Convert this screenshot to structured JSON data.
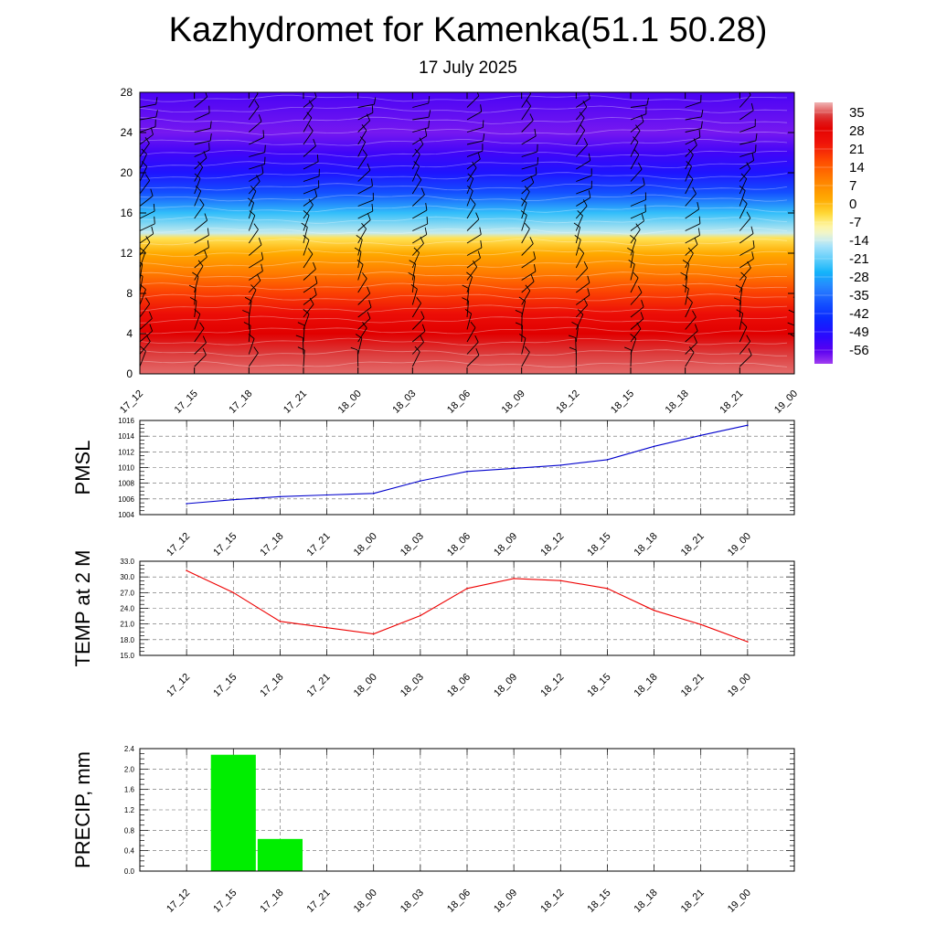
{
  "title": "Kazhydromet for Kamenka(51.1 50.28)",
  "subtitle": "17 July 2025",
  "time_labels": [
    "17_12",
    "17_15",
    "17_18",
    "17_21",
    "18_00",
    "18_03",
    "18_06",
    "18_09",
    "18_12",
    "18_15",
    "18_18",
    "18_21",
    "19_00"
  ],
  "chart_data": [
    {
      "type": "heatmap",
      "yticks": [
        0,
        4,
        8,
        12,
        16,
        20,
        24,
        28
      ],
      "ylim": [
        0,
        28
      ],
      "colorbar": {
        "labels": [
          "35",
          "28",
          "21",
          "14",
          "7",
          "0",
          "-7",
          "-14",
          "-21",
          "-28",
          "-35",
          "-42",
          "-49",
          "-56"
        ],
        "range": [
          -63,
          37
        ]
      },
      "rows": [
        {
          "level": 0,
          "value": 34
        },
        {
          "level": 2,
          "value": 32
        },
        {
          "level": 4,
          "value": 28
        },
        {
          "level": 6,
          "value": 23
        },
        {
          "level": 8,
          "value": 16
        },
        {
          "level": 10,
          "value": 8
        },
        {
          "level": 12,
          "value": 0
        },
        {
          "level": 13.5,
          "value": -7
        },
        {
          "level": 14,
          "value": -16
        },
        {
          "level": 16,
          "value": -26
        },
        {
          "level": 18,
          "value": -40
        },
        {
          "level": 20,
          "value": -50
        },
        {
          "level": 22,
          "value": -55
        },
        {
          "level": 24,
          "value": -60
        },
        {
          "level": 28,
          "value": -56
        }
      ]
    },
    {
      "type": "line",
      "ylabel": "PMSL",
      "yticks": [
        "1004",
        "1006",
        "1008",
        "1010",
        "1012",
        "1014",
        "1016"
      ],
      "ylim": [
        1004,
        1016
      ],
      "color": "#0000cc",
      "x": [
        "17_12",
        "17_15",
        "17_18",
        "17_21",
        "18_00",
        "18_03",
        "18_06",
        "18_09",
        "18_12",
        "18_15",
        "18_18",
        "18_21",
        "19_00"
      ],
      "values": [
        1005.4,
        1005.9,
        1006.3,
        1006.5,
        1006.7,
        1008.3,
        1009.5,
        1009.9,
        1010.3,
        1011.0,
        1012.7,
        1014.1,
        1015.4
      ]
    },
    {
      "type": "line",
      "ylabel": "TEMP at 2 M",
      "yticks": [
        "15.0",
        "18.0",
        "21.0",
        "24.0",
        "27.0",
        "30.0",
        "33.0"
      ],
      "ylim": [
        15,
        33
      ],
      "color": "#ee0000",
      "x": [
        "17_12",
        "17_15",
        "17_18",
        "17_21",
        "18_00",
        "18_03",
        "18_06",
        "18_09",
        "18_12",
        "18_15",
        "18_18",
        "18_21",
        "19_00"
      ],
      "values": [
        31.2,
        27.0,
        21.5,
        20.3,
        19.1,
        22.6,
        27.8,
        29.7,
        29.3,
        27.8,
        23.6,
        20.9,
        17.6
      ]
    },
    {
      "type": "bar",
      "ylabel": "PRECIP, mm",
      "yticks": [
        "0.0",
        "0.4",
        "0.8",
        "1.2",
        "1.6",
        "2.0",
        "2.4"
      ],
      "ylim": [
        0,
        2.4
      ],
      "color": "#00ee00",
      "x": [
        "17_12",
        "17_15",
        "17_18",
        "17_21",
        "18_00",
        "18_03",
        "18_06",
        "18_09",
        "18_12",
        "18_15",
        "18_18",
        "18_21",
        "19_00"
      ],
      "values": [
        0,
        2.28,
        0.63,
        0,
        0,
        0,
        0,
        0,
        0,
        0,
        0,
        0,
        0
      ]
    }
  ]
}
